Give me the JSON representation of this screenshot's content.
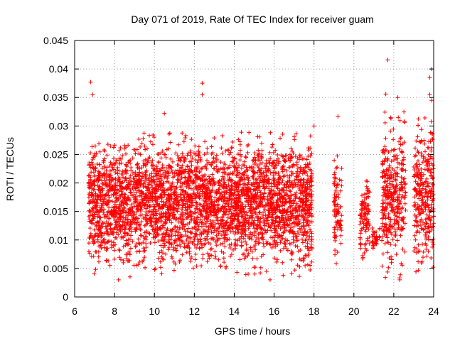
{
  "chart_data": {
    "type": "scatter",
    "title": "Day 071 of 2019, Rate Of TEC Index for receiver guam",
    "xlabel": "GPS time / hours",
    "ylabel": "ROTI / TECUs",
    "xlim": [
      6,
      24
    ],
    "ylim": [
      0,
      0.045
    ],
    "x_ticks": [
      6,
      8,
      10,
      12,
      14,
      16,
      18,
      20,
      22,
      24
    ],
    "x_tick_labels": [
      "6",
      "8",
      "10",
      "12",
      "14",
      "16",
      "18",
      "20",
      "22",
      "24"
    ],
    "y_ticks": [
      0,
      0.005,
      0.01,
      0.015,
      0.02,
      0.025,
      0.03,
      0.035,
      0.04,
      0.045
    ],
    "y_tick_labels": [
      "0",
      "0.005",
      "0.01",
      "0.015",
      "0.02",
      "0.025",
      "0.03",
      "0.035",
      "0.04",
      "0.045"
    ],
    "grid": true,
    "marker": "plus",
    "series_color": "#ff0000",
    "observation_windows": [
      {
        "x_start": 6.7,
        "x_end": 17.9,
        "y_min": 0.004,
        "y_max": 0.029,
        "density": 1.0
      },
      {
        "x_start": 19.0,
        "x_end": 19.4,
        "y_min": 0.005,
        "y_max": 0.026,
        "density": 0.7
      },
      {
        "x_start": 20.3,
        "x_end": 20.8,
        "y_min": 0.006,
        "y_max": 0.022,
        "density": 0.6
      },
      {
        "x_start": 20.9,
        "x_end": 21.3,
        "y_min": 0.008,
        "y_max": 0.013,
        "density": 0.3
      },
      {
        "x_start": 21.4,
        "x_end": 22.6,
        "y_min": 0.003,
        "y_max": 0.033,
        "density": 0.9
      },
      {
        "x_start": 23.0,
        "x_end": 24.0,
        "y_min": 0.003,
        "y_max": 0.032,
        "density": 0.9
      }
    ],
    "notable_points": [
      {
        "x": 6.8,
        "y": 0.0377
      },
      {
        "x": 6.9,
        "y": 0.0355
      },
      {
        "x": 12.4,
        "y": 0.0375
      },
      {
        "x": 12.4,
        "y": 0.0355
      },
      {
        "x": 10.5,
        "y": 0.0322
      },
      {
        "x": 19.2,
        "y": 0.0317
      },
      {
        "x": 21.7,
        "y": 0.0416
      },
      {
        "x": 21.6,
        "y": 0.0356
      },
      {
        "x": 22.2,
        "y": 0.035
      },
      {
        "x": 23.9,
        "y": 0.04
      },
      {
        "x": 23.8,
        "y": 0.0385
      },
      {
        "x": 23.8,
        "y": 0.0355
      },
      {
        "x": 23.9,
        "y": 0.0345
      },
      {
        "x": 18.0,
        "y": 0.03
      },
      {
        "x": 14.7,
        "y": 0.004
      },
      {
        "x": 8.2,
        "y": 0.003
      },
      {
        "x": 15.8,
        "y": 0.003
      },
      {
        "x": 22.3,
        "y": 0.003
      }
    ]
  }
}
